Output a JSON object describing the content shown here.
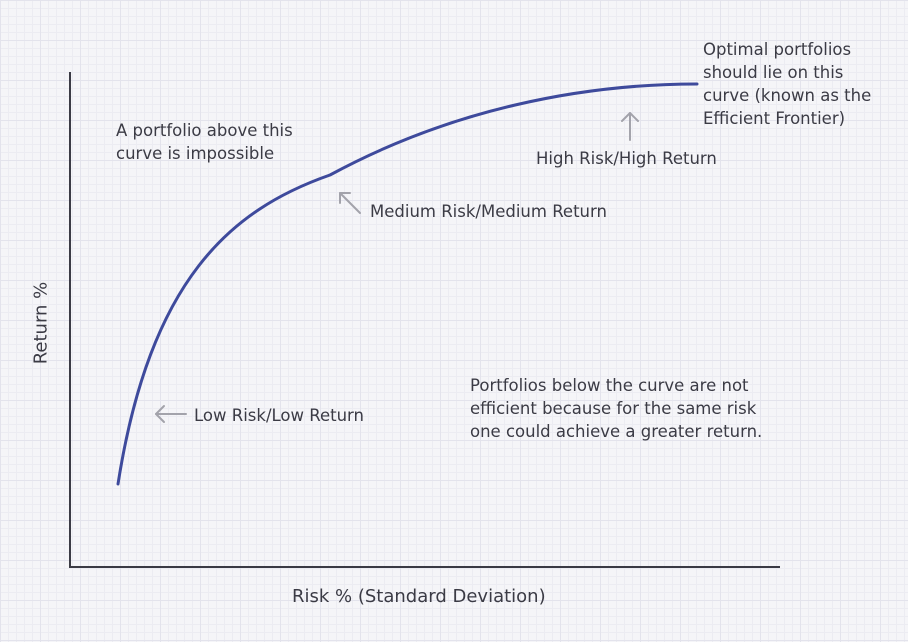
{
  "axes": {
    "x_label": "Risk % (Standard Deviation)",
    "y_label": "Return %"
  },
  "annotations": {
    "impossible": [
      "A portfolio above this",
      "curve is impossible"
    ],
    "optimal": [
      "Optimal portfolios",
      "should lie on this",
      "curve (known as the",
      "Efficient Frontier)"
    ],
    "high": "High Risk/High Return",
    "medium": "Medium Risk/Medium Return",
    "low": "Low Risk/Low Return",
    "below": [
      "Portfolios below the curve are not",
      "efficient because for the same risk",
      "one could achieve a greater return."
    ]
  },
  "colors": {
    "curve": "#3e4a9c",
    "axis": "#3b3b45",
    "arrow": "#a3a3ab",
    "text": "#3b3b45"
  },
  "icons": {
    "high": "arrow-up-icon",
    "medium": "arrow-up-left-icon",
    "low": "arrow-left-icon"
  }
}
